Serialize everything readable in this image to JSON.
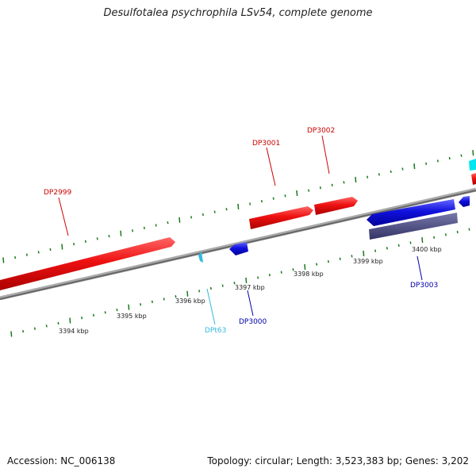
{
  "title": "Desulfotalea psychrophila LSv54, complete genome",
  "accession": "Accession: NC_006138",
  "topology": "Topology: circular; Length: 3,523,383 bp; Genes: 3,202",
  "colors": {
    "forward_gene": "#ee1111",
    "reverse_gene": "#1111dd",
    "trna": "#33bbdd",
    "cds_dark": "#44447a",
    "cyan_feature": "#00e5ee",
    "tick": "#1a7a1a",
    "backbone": "#888888"
  },
  "scale_labels": [
    "3394 kbp",
    "3395 kbp",
    "3396 kbp",
    "3397 kbp",
    "3398 kbp",
    "3399 kbp",
    "3400 kbp"
  ],
  "gene_labels": [
    {
      "text": "DP2999",
      "color": "#cc0000"
    },
    {
      "text": "DP3001",
      "color": "#cc0000"
    },
    {
      "text": "DP3002",
      "color": "#cc0000"
    },
    {
      "text": "DPt63",
      "color": "#33bbdd"
    },
    {
      "text": "DP3000",
      "color": "#0000aa"
    },
    {
      "text": "DP3003",
      "color": "#0000aa"
    }
  ]
}
